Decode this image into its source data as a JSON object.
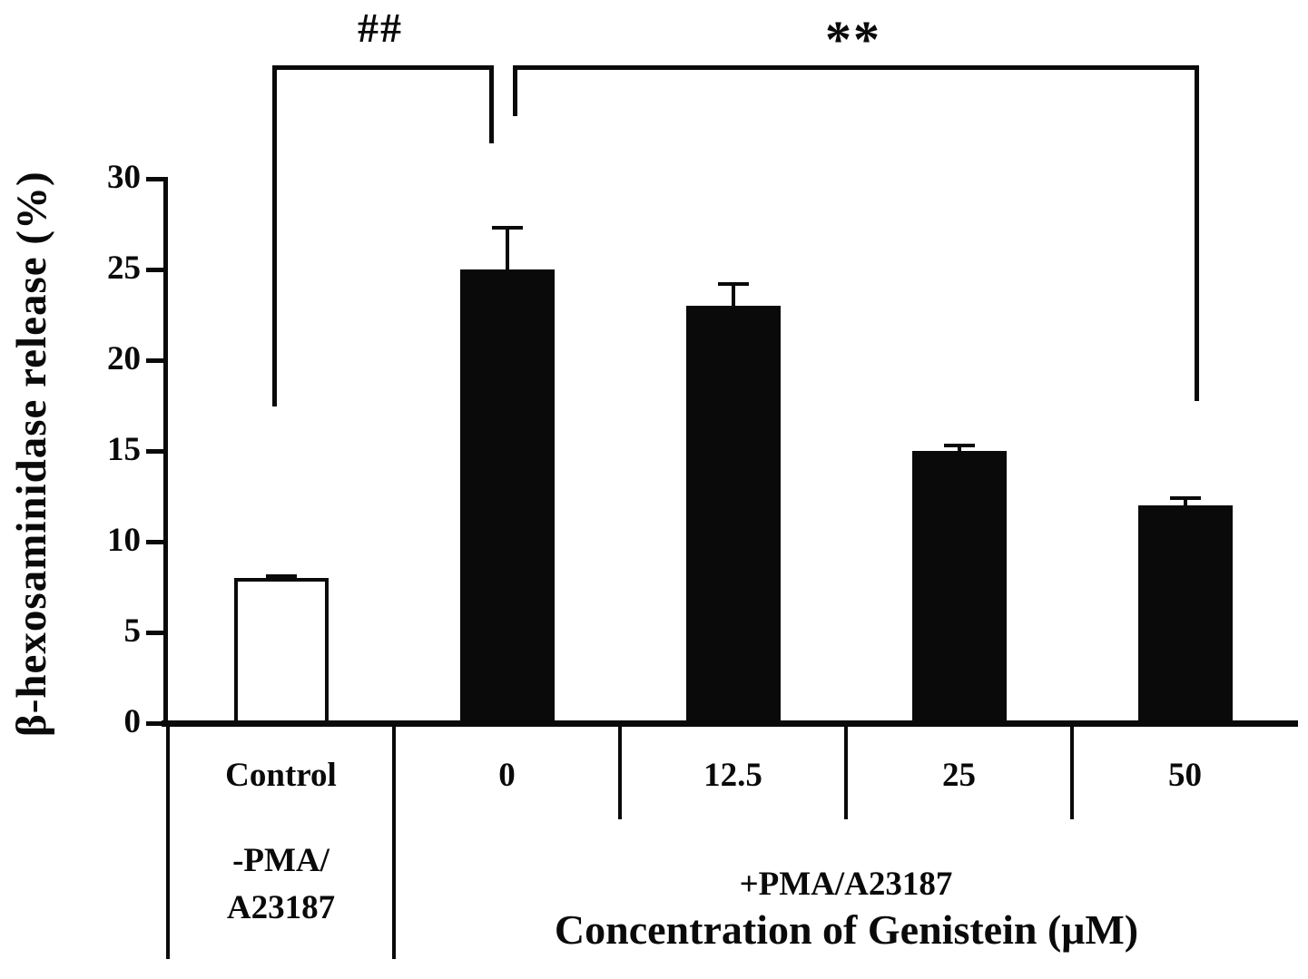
{
  "chart_data": {
    "type": "bar",
    "title": "",
    "ylabel": "β-hexosaminidase release (%)",
    "xlabel": "Concentration of Genistein (μM)",
    "ylim": [
      0,
      30
    ],
    "yticks": [
      0,
      5,
      10,
      15,
      20,
      25,
      30
    ],
    "grid": false,
    "legend_position": null,
    "categories": [
      "Control",
      "0",
      "12.5",
      "25",
      "50"
    ],
    "values": [
      8,
      25,
      23,
      15,
      12
    ],
    "errors_plus": [
      0.1,
      2.3,
      1.2,
      0.3,
      0.4
    ],
    "bar_styles": [
      {
        "fill": "#ffffff",
        "stroke": "#0a0a0a"
      },
      {
        "fill": "#0a0a0a",
        "stroke": "#0a0a0a"
      },
      {
        "fill": "#0a0a0a",
        "stroke": "#0a0a0a"
      },
      {
        "fill": "#0a0a0a",
        "stroke": "#0a0a0a"
      },
      {
        "fill": "#0a0a0a",
        "stroke": "#0a0a0a"
      }
    ],
    "groups": [
      {
        "lines": [
          "-PMA/",
          "A23187"
        ],
        "span": [
          0,
          0
        ]
      },
      {
        "lines": [
          "+PMA/A23187"
        ],
        "span": [
          1,
          4
        ]
      }
    ],
    "annotations": [
      {
        "text": "##",
        "from_index": 0,
        "to_index": 1
      },
      {
        "text": "**",
        "from_index": 1,
        "to_index": 4
      }
    ]
  },
  "colors": {
    "ink": "#0a0a0a",
    "bar_white": "#ffffff",
    "bar_black": "#0a0a0a",
    "background": "#ffffff"
  }
}
